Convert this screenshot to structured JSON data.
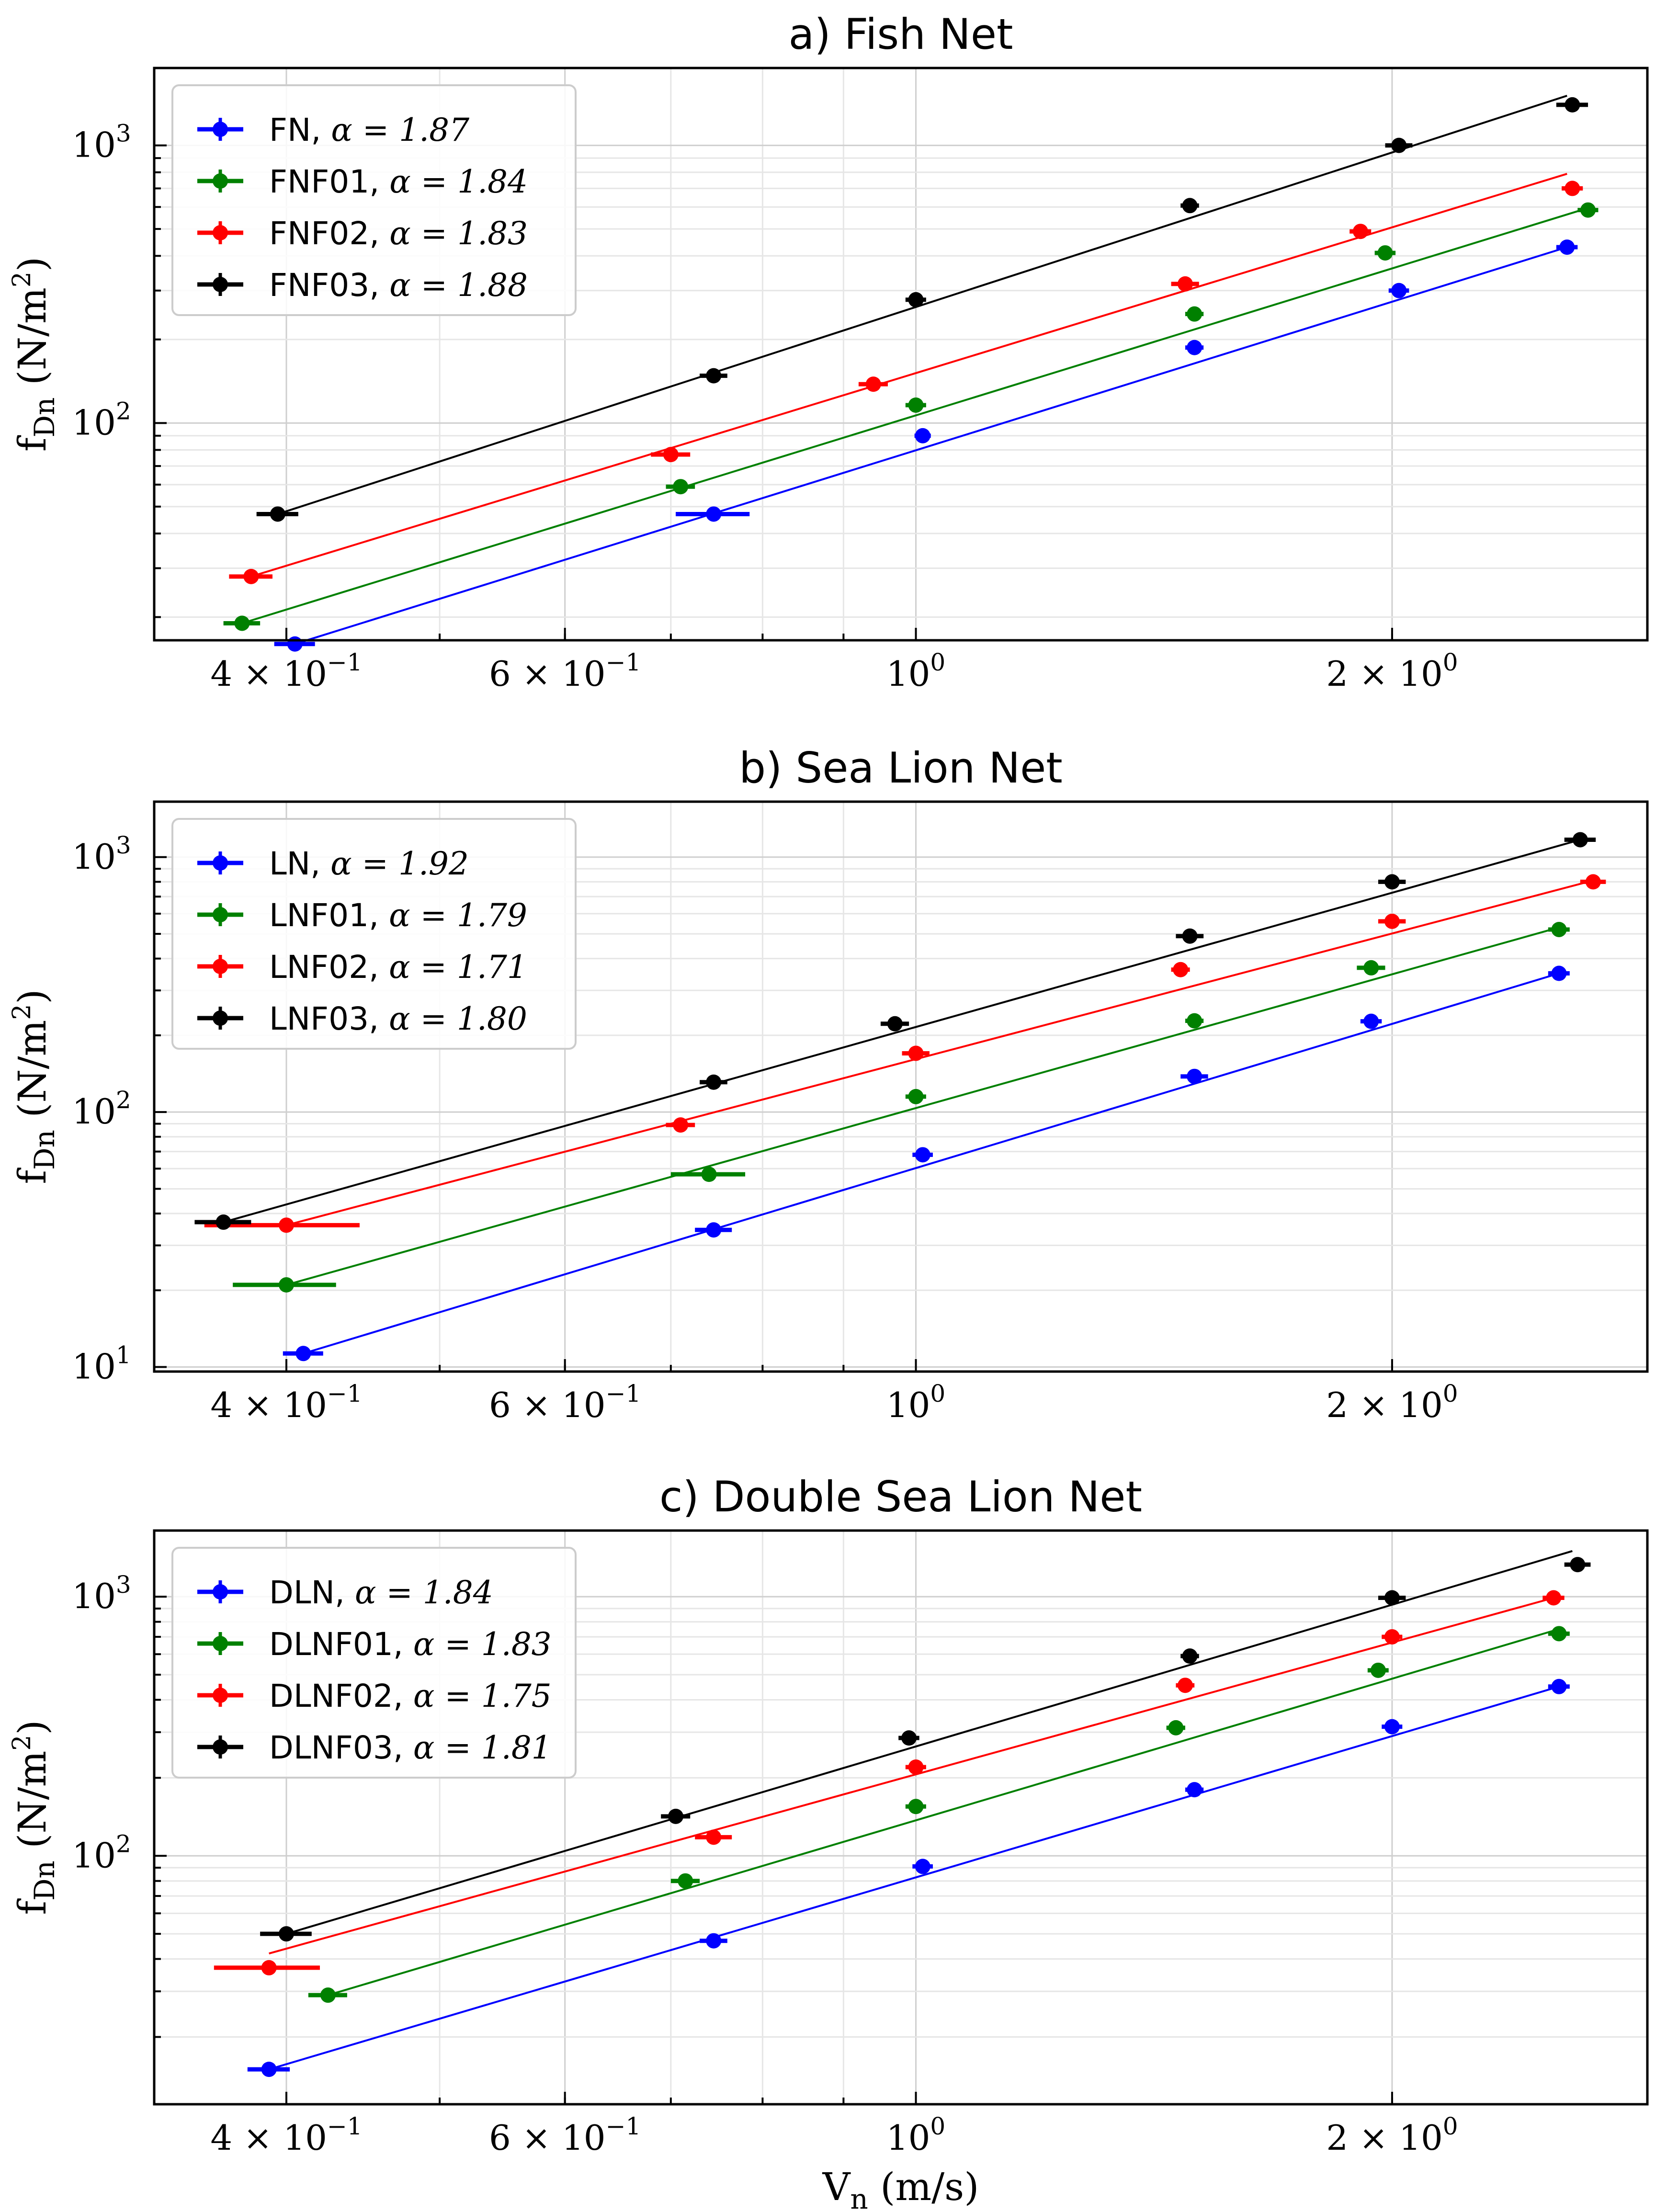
{
  "chart_data": [
    {
      "type": "scatter",
      "title": "a) Fish Net",
      "xlabel": "",
      "ylabel_base": "f",
      "ylabel_sub": "Dn",
      "ylabel_unit": "(N/m",
      "ylabel_sup": "2",
      "ylabel_close": ")",
      "xscale": "log",
      "yscale": "log",
      "xlim": [
        0.33,
        2.9
      ],
      "ylim": [
        16.5,
        1900
      ],
      "x_ticks": [
        {
          "value": 0.4,
          "mantissa": "4 × 10",
          "exp": "−1"
        },
        {
          "value": 0.6,
          "mantissa": "6 × 10",
          "exp": "−1"
        },
        {
          "value": 1.0,
          "mantissa": "10",
          "exp": "0"
        },
        {
          "value": 2.0,
          "mantissa": "2 × 10",
          "exp": "0"
        }
      ],
      "y_ticks": [
        {
          "value": 100,
          "mantissa": "10",
          "exp": "2"
        },
        {
          "value": 1000,
          "mantissa": "10",
          "exp": "3"
        }
      ],
      "grid": true,
      "legend_position": "upper-left",
      "series": [
        {
          "name": "FN",
          "alpha_label": "α = 1.87",
          "color": "#0000ff",
          "points": [
            [
              0.405,
              16
            ],
            [
              0.745,
              47
            ],
            [
              1.01,
              90
            ],
            [
              1.5,
              187
            ],
            [
              2.02,
              300
            ],
            [
              2.58,
              430
            ]
          ],
          "xerr": [
            0.012,
            0.04,
            0.012,
            0.02,
            0.03,
            0.04
          ],
          "fit": [
            [
              0.405,
              16
            ],
            [
              2.58,
              430
            ]
          ]
        },
        {
          "name": "FNF01",
          "alpha_label": "α = 1.84",
          "color": "#008000",
          "points": [
            [
              0.375,
              19
            ],
            [
              0.71,
              59
            ],
            [
              1.0,
              116
            ],
            [
              1.5,
              247
            ],
            [
              1.98,
              410
            ],
            [
              2.66,
              585
            ]
          ],
          "xerr": [
            0.01,
            0.015,
            0.015,
            0.02,
            0.03,
            0.04
          ],
          "fit": [
            [
              0.375,
              19
            ],
            [
              2.66,
              595
            ]
          ]
        },
        {
          "name": "FNF02",
          "alpha_label": "α = 1.83",
          "color": "#ff0000",
          "points": [
            [
              0.38,
              28
            ],
            [
              0.7,
              77
            ],
            [
              0.94,
              138
            ],
            [
              1.48,
              317
            ],
            [
              1.91,
              490
            ],
            [
              2.6,
              700
            ]
          ],
          "xerr": [
            0.012,
            0.02,
            0.02,
            0.03,
            0.03,
            0.04
          ],
          "fit": [
            [
              0.38,
              28
            ],
            [
              2.58,
              790
            ]
          ]
        },
        {
          "name": "FNF03",
          "alpha_label": "α = 1.88",
          "color": "#000000",
          "points": [
            [
              0.395,
              47
            ],
            [
              0.745,
              148
            ],
            [
              1.0,
              278
            ],
            [
              1.49,
              607
            ],
            [
              2.02,
              1000
            ],
            [
              2.6,
              1400
            ]
          ],
          "xerr": [
            0.012,
            0.015,
            0.015,
            0.02,
            0.04,
            0.06
          ],
          "fit": [
            [
              0.395,
              47
            ],
            [
              2.58,
              1510
            ]
          ]
        }
      ]
    },
    {
      "type": "scatter",
      "title": "b) Sea Lion Net",
      "xlabel": "",
      "ylabel_base": "f",
      "ylabel_sub": "Dn",
      "ylabel_unit": "(N/m",
      "ylabel_sup": "2",
      "ylabel_close": ")",
      "xscale": "log",
      "yscale": "log",
      "xlim": [
        0.33,
        2.9
      ],
      "ylim": [
        9.6,
        1650
      ],
      "x_ticks": [
        {
          "value": 0.4,
          "mantissa": "4 × 10",
          "exp": "−1"
        },
        {
          "value": 0.6,
          "mantissa": "6 × 10",
          "exp": "−1"
        },
        {
          "value": 1.0,
          "mantissa": "10",
          "exp": "0"
        },
        {
          "value": 2.0,
          "mantissa": "2 × 10",
          "exp": "0"
        }
      ],
      "y_ticks": [
        {
          "value": 10,
          "mantissa": "10",
          "exp": "1"
        },
        {
          "value": 100,
          "mantissa": "10",
          "exp": "2"
        },
        {
          "value": 1000,
          "mantissa": "10",
          "exp": "3"
        }
      ],
      "grid": true,
      "legend_position": "upper-left",
      "series": [
        {
          "name": "LN",
          "alpha_label": "α = 1.92",
          "color": "#0000ff",
          "points": [
            [
              0.41,
              11.3
            ],
            [
              0.745,
              34.5
            ],
            [
              1.01,
              68
            ],
            [
              1.5,
              138
            ],
            [
              1.94,
              227
            ],
            [
              2.55,
              350
            ]
          ],
          "xerr": [
            0.012,
            0.02,
            0.015,
            0.03,
            0.03,
            0.04
          ],
          "fit": [
            [
              0.41,
              11.3
            ],
            [
              2.55,
              350
            ]
          ]
        },
        {
          "name": "LNF01",
          "alpha_label": "α = 1.79",
          "color": "#008000",
          "points": [
            [
              0.4,
              21
            ],
            [
              0.74,
              57
            ],
            [
              1.0,
              115
            ],
            [
              1.5,
              228
            ],
            [
              1.94,
              368
            ],
            [
              2.55,
              520
            ]
          ],
          "xerr": [
            0.03,
            0.04,
            0.015,
            0.02,
            0.04,
            0.04
          ],
          "fit": [
            [
              0.4,
              21
            ],
            [
              2.55,
              530
            ]
          ]
        },
        {
          "name": "LNF02",
          "alpha_label": "α = 1.71",
          "color": "#ff0000",
          "points": [
            [
              0.4,
              36
            ],
            [
              0.71,
              89
            ],
            [
              1.0,
              170
            ],
            [
              1.47,
              362
            ],
            [
              2.0,
              560
            ],
            [
              2.68,
              800
            ]
          ],
          "xerr": [
            0.045,
            0.015,
            0.02,
            0.02,
            0.04,
            0.05
          ],
          "fit": [
            [
              0.4,
              36
            ],
            [
              2.68,
              810
            ]
          ]
        },
        {
          "name": "LNF03",
          "alpha_label": "α = 1.80",
          "color": "#000000",
          "points": [
            [
              0.365,
              37
            ],
            [
              0.745,
              131
            ],
            [
              0.97,
              222
            ],
            [
              1.49,
              490
            ],
            [
              2.0,
              800
            ],
            [
              2.63,
              1170
            ]
          ],
          "xerr": [
            0.015,
            0.015,
            0.02,
            0.03,
            0.04,
            0.06
          ],
          "fit": [
            [
              0.365,
              37
            ],
            [
              2.63,
              1170
            ]
          ]
        }
      ]
    },
    {
      "type": "scatter",
      "title": "c) Double Sea Lion Net",
      "xlabel_base": "V",
      "xlabel_sub": "n",
      "xlabel_unit": "(m/s)",
      "ylabel_base": "f",
      "ylabel_sub": "Dn",
      "ylabel_unit": "(N/m",
      "ylabel_sup": "2",
      "ylabel_close": ")",
      "xscale": "log",
      "yscale": "log",
      "xlim": [
        0.33,
        2.9
      ],
      "ylim": [
        11,
        1800
      ],
      "x_ticks": [
        {
          "value": 0.4,
          "mantissa": "4 × 10",
          "exp": "−1"
        },
        {
          "value": 0.6,
          "mantissa": "6 × 10",
          "exp": "−1"
        },
        {
          "value": 1.0,
          "mantissa": "10",
          "exp": "0"
        },
        {
          "value": 2.0,
          "mantissa": "2 × 10",
          "exp": "0"
        }
      ],
      "y_ticks": [
        {
          "value": 100,
          "mantissa": "10",
          "exp": "2"
        },
        {
          "value": 1000,
          "mantissa": "10",
          "exp": "3"
        }
      ],
      "grid": true,
      "legend_position": "upper-left",
      "series": [
        {
          "name": "DLN",
          "alpha_label": "α = 1.84",
          "color": "#0000ff",
          "points": [
            [
              0.39,
              15
            ],
            [
              0.745,
              47
            ],
            [
              1.01,
              91
            ],
            [
              1.5,
              180
            ],
            [
              2.0,
              315
            ],
            [
              2.55,
              450
            ]
          ],
          "xerr": [
            0.012,
            0.015,
            0.015,
            0.02,
            0.03,
            0.04
          ],
          "fit": [
            [
              0.39,
              15
            ],
            [
              2.55,
              450
            ]
          ]
        },
        {
          "name": "DLNF01",
          "alpha_label": "α = 1.83",
          "color": "#008000",
          "points": [
            [
              0.425,
              29
            ],
            [
              0.715,
              80
            ],
            [
              1.0,
              155
            ],
            [
              1.46,
              312
            ],
            [
              1.96,
              520
            ],
            [
              2.55,
              720
            ]
          ],
          "xerr": [
            0.012,
            0.015,
            0.015,
            0.02,
            0.03,
            0.04
          ],
          "fit": [
            [
              0.425,
              29
            ],
            [
              2.55,
              750
            ]
          ]
        },
        {
          "name": "DLNF02",
          "alpha_label": "α = 1.75",
          "color": "#ff0000",
          "points": [
            [
              0.39,
              37
            ],
            [
              0.745,
              118
            ],
            [
              1.0,
              220
            ],
            [
              1.48,
              455
            ],
            [
              2.0,
              700
            ],
            [
              2.53,
              990
            ]
          ],
          "xerr": [
            0.03,
            0.02,
            0.015,
            0.02,
            0.03,
            0.04
          ],
          "fit": [
            [
              0.39,
              42
            ],
            [
              2.53,
              990
            ]
          ]
        },
        {
          "name": "DLNF03",
          "alpha_label": "α = 1.81",
          "color": "#000000",
          "points": [
            [
              0.4,
              50
            ],
            [
              0.705,
              142
            ],
            [
              0.99,
              285
            ],
            [
              1.49,
              590
            ],
            [
              2.0,
              990
            ],
            [
              2.62,
              1330
            ]
          ],
          "xerr": [
            0.015,
            0.015,
            0.015,
            0.02,
            0.04,
            0.05
          ],
          "fit": [
            [
              0.4,
              50
            ],
            [
              2.6,
              1500
            ]
          ]
        }
      ]
    }
  ]
}
